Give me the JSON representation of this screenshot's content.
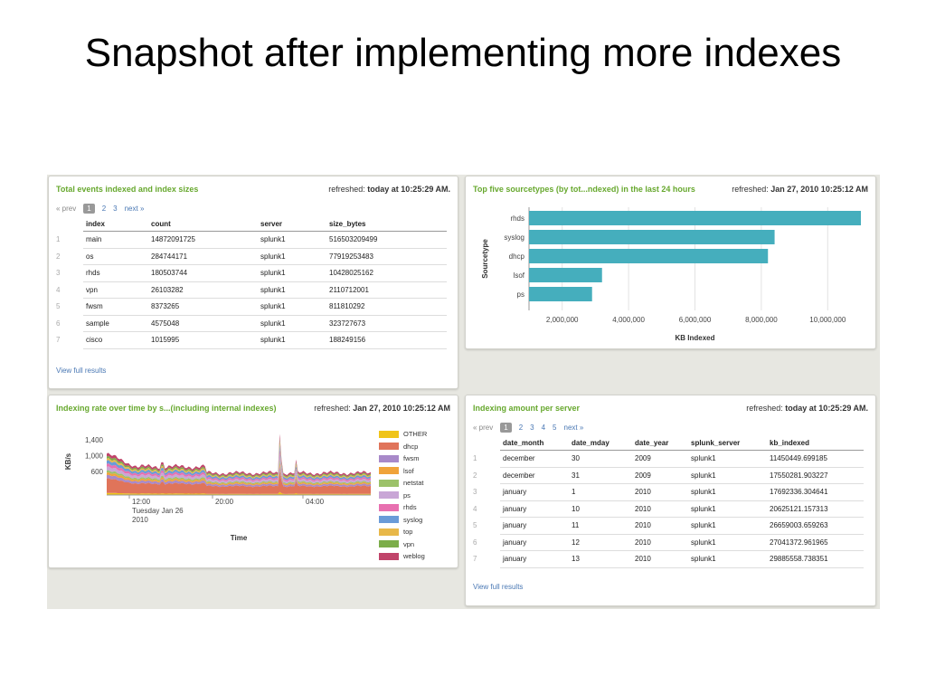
{
  "slide_title": "Snapshot after implementing more indexes",
  "colors": {
    "accent_green": "#67a82e",
    "link_blue": "#4a78b4",
    "bar_teal": "#45aebd"
  },
  "panel1": {
    "title": "Total events indexed and index sizes",
    "refreshed_label": "refreshed:",
    "refreshed_value": "today at 10:25:29 AM.",
    "pager": {
      "prev": "« prev",
      "pages": [
        "1",
        "2",
        "3"
      ],
      "next": "next »"
    },
    "columns": [
      "index",
      "count",
      "server",
      "size_bytes"
    ],
    "rows": [
      [
        "1",
        "main",
        "14872091725",
        "splunk1",
        "516503209499"
      ],
      [
        "2",
        "os",
        "284744171",
        "splunk1",
        "77919253483"
      ],
      [
        "3",
        "rhds",
        "180503744",
        "splunk1",
        "10428025162"
      ],
      [
        "4",
        "vpn",
        "26103282",
        "splunk1",
        "2110712001"
      ],
      [
        "5",
        "fwsm",
        "8373265",
        "splunk1",
        "811810292"
      ],
      [
        "6",
        "sample",
        "4575048",
        "splunk1",
        "323727673"
      ],
      [
        "7",
        "cisco",
        "1015995",
        "splunk1",
        "188249156"
      ]
    ],
    "view_full": "View full results"
  },
  "panel2": {
    "title": "Top five sourcetypes (by tot...ndexed) in the last 24 hours",
    "refreshed_label": "refreshed:",
    "refreshed_value": "Jan 27, 2010 10:25:12 AM"
  },
  "panel3": {
    "title": "Indexing rate over time by s...(including internal indexes)",
    "refreshed_label": "refreshed:",
    "refreshed_value": "Jan 27, 2010 10:25:12 AM",
    "legend": [
      "OTHER",
      "dhcp",
      "fwsm",
      "lsof",
      "netstat",
      "ps",
      "rhds",
      "syslog",
      "top",
      "vpn",
      "weblog"
    ]
  },
  "panel4": {
    "title": "Indexing amount per server",
    "refreshed_label": "refreshed:",
    "refreshed_value": "today at 10:25:29 AM.",
    "pager": {
      "prev": "« prev",
      "pages": [
        "1",
        "2",
        "3",
        "4",
        "5"
      ],
      "next": "next »"
    },
    "columns": [
      "date_month",
      "date_mday",
      "date_year",
      "splunk_server",
      "kb_indexed"
    ],
    "rows": [
      [
        "1",
        "december",
        "30",
        "2009",
        "splunk1",
        "11450449.699185"
      ],
      [
        "2",
        "december",
        "31",
        "2009",
        "splunk1",
        "17550281.903227"
      ],
      [
        "3",
        "january",
        "1",
        "2010",
        "splunk1",
        "17692336.304641"
      ],
      [
        "4",
        "january",
        "10",
        "2010",
        "splunk1",
        "20625121.157313"
      ],
      [
        "5",
        "january",
        "11",
        "2010",
        "splunk1",
        "26659003.659263"
      ],
      [
        "6",
        "january",
        "12",
        "2010",
        "splunk1",
        "27041372.961965"
      ],
      [
        "7",
        "january",
        "13",
        "2010",
        "splunk1",
        "29885558.738351"
      ]
    ],
    "view_full": "View full results"
  },
  "chart_data": [
    {
      "type": "bar",
      "orientation": "horizontal",
      "categories": [
        "rhds",
        "syslog",
        "dhcp",
        "lsof",
        "ps"
      ],
      "values": [
        11000000,
        8400000,
        8200000,
        3200000,
        2900000
      ],
      "xlabel": "KB Indexed",
      "ylabel": "Sourcetype",
      "xticks": [
        "2,000,000",
        "4,000,000",
        "6,000,000",
        "8,000,000",
        "10,000,000"
      ],
      "xlim": [
        1000000,
        11000000
      ],
      "grid": true,
      "color": "#45aebd"
    },
    {
      "type": "area",
      "stacked": true,
      "ylabel": "KB/s",
      "xlabel": "Time",
      "yticks": [
        "600",
        "1,000",
        "1,400"
      ],
      "xticks": [
        "12:00\nTuesday Jan 26\n2010",
        "20:00",
        "04:00"
      ],
      "legend_position": "right",
      "series": [
        {
          "name": "OTHER",
          "color": "#f0c419"
        },
        {
          "name": "dhcp",
          "color": "#e0745a"
        },
        {
          "name": "fwsm",
          "color": "#a889c9"
        },
        {
          "name": "lsof",
          "color": "#f0a33a"
        },
        {
          "name": "netstat",
          "color": "#9cc26a"
        },
        {
          "name": "ps",
          "color": "#c9a6d6"
        },
        {
          "name": "rhds",
          "color": "#e870b0"
        },
        {
          "name": "syslog",
          "color": "#6a9bd8"
        },
        {
          "name": "top",
          "color": "#e8b84a"
        },
        {
          "name": "vpn",
          "color": "#7cad4a"
        },
        {
          "name": "weblog",
          "color": "#c0446a"
        }
      ]
    }
  ]
}
